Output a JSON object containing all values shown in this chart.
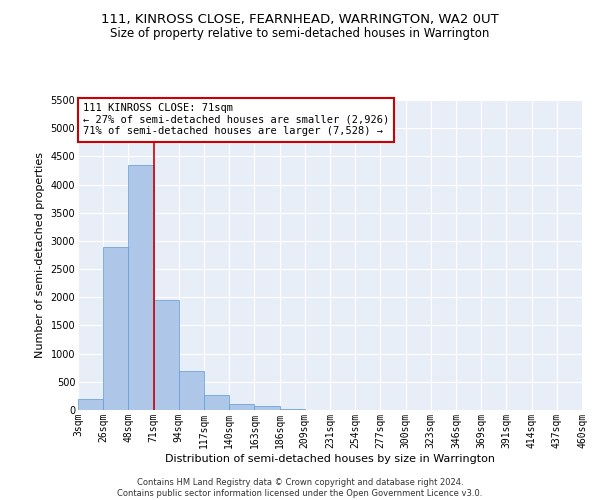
{
  "title": "111, KINROSS CLOSE, FEARNHEAD, WARRINGTON, WA2 0UT",
  "subtitle": "Size of property relative to semi-detached houses in Warrington",
  "xlabel": "Distribution of semi-detached houses by size in Warrington",
  "ylabel": "Number of semi-detached properties",
  "footer": "Contains HM Land Registry data © Crown copyright and database right 2024.\nContains public sector information licensed under the Open Government Licence v3.0.",
  "bin_labels": [
    "3sqm",
    "26sqm",
    "48sqm",
    "71sqm",
    "94sqm",
    "117sqm",
    "140sqm",
    "163sqm",
    "186sqm",
    "209sqm",
    "231sqm",
    "254sqm",
    "277sqm",
    "300sqm",
    "323sqm",
    "346sqm",
    "369sqm",
    "391sqm",
    "414sqm",
    "437sqm",
    "460sqm"
  ],
  "bar_values": [
    200,
    2900,
    4350,
    1950,
    700,
    270,
    110,
    65,
    25,
    0,
    0,
    0,
    0,
    0,
    0,
    0,
    0,
    0,
    0,
    0
  ],
  "bar_color": "#aec6e8",
  "bar_edge_color": "#5b9bd5",
  "vline_x": 3,
  "vline_color": "#cc0000",
  "annotation_text": "111 KINROSS CLOSE: 71sqm\n← 27% of semi-detached houses are smaller (2,926)\n71% of semi-detached houses are larger (7,528) →",
  "annotation_box_color": "#ffffff",
  "annotation_box_edge": "#cc0000",
  "ylim": [
    0,
    5500
  ],
  "yticks": [
    0,
    500,
    1000,
    1500,
    2000,
    2500,
    3000,
    3500,
    4000,
    4500,
    5000,
    5500
  ],
  "background_color": "#e8eef8",
  "title_fontsize": 9.5,
  "subtitle_fontsize": 8.5,
  "tick_fontsize": 7,
  "ylabel_fontsize": 8,
  "xlabel_fontsize": 8,
  "footer_fontsize": 6,
  "annot_fontsize": 7.5
}
